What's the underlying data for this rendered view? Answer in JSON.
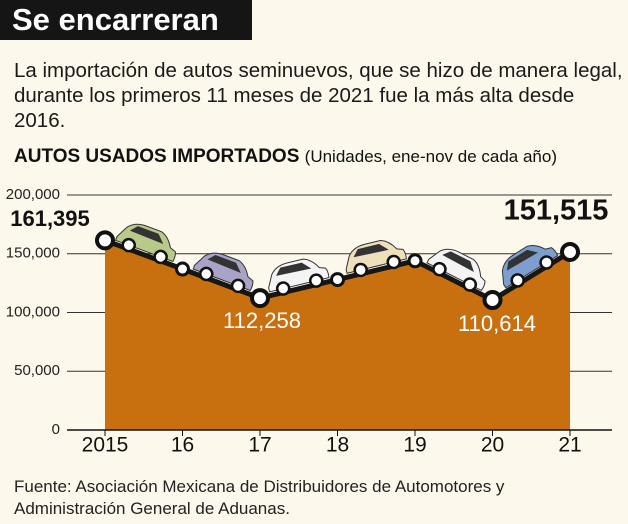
{
  "chart_data": {
    "type": "area",
    "title": "Se encarreran",
    "subtitle": "La importación de autos seminuevos, que se hizo de manera legal, durante los primeros 11 meses de 2021 fue la más alta desde 2016.",
    "y_label": "AUTOS USADOS IMPORTADOS",
    "y_label_note": "(Unidades, ene-nov de cada año)",
    "source": "Fuente: Asociación Mexicana de Distribuidores de Automotores y Administración General de Aduanas.",
    "categories": [
      "2015",
      "16",
      "17",
      "18",
      "19",
      "20",
      "21"
    ],
    "values": [
      161395,
      137000,
      112258,
      128000,
      144000,
      110614,
      151515
    ],
    "value_labels": [
      "161,395",
      null,
      "112,258",
      null,
      null,
      "110,614",
      "151,515"
    ],
    "color": "#c8700f",
    "line_color": "#161616",
    "ylim": [
      0,
      200000
    ],
    "yticks": [
      0,
      {
        "value": 50000,
        "label": "50,000"
      },
      {
        "value": 100000,
        "label": "100,000"
      },
      {
        "value": 150000,
        "label": "150,000"
      },
      {
        "value": 200000,
        "label": "200,000"
      }
    ],
    "grid": true
  }
}
